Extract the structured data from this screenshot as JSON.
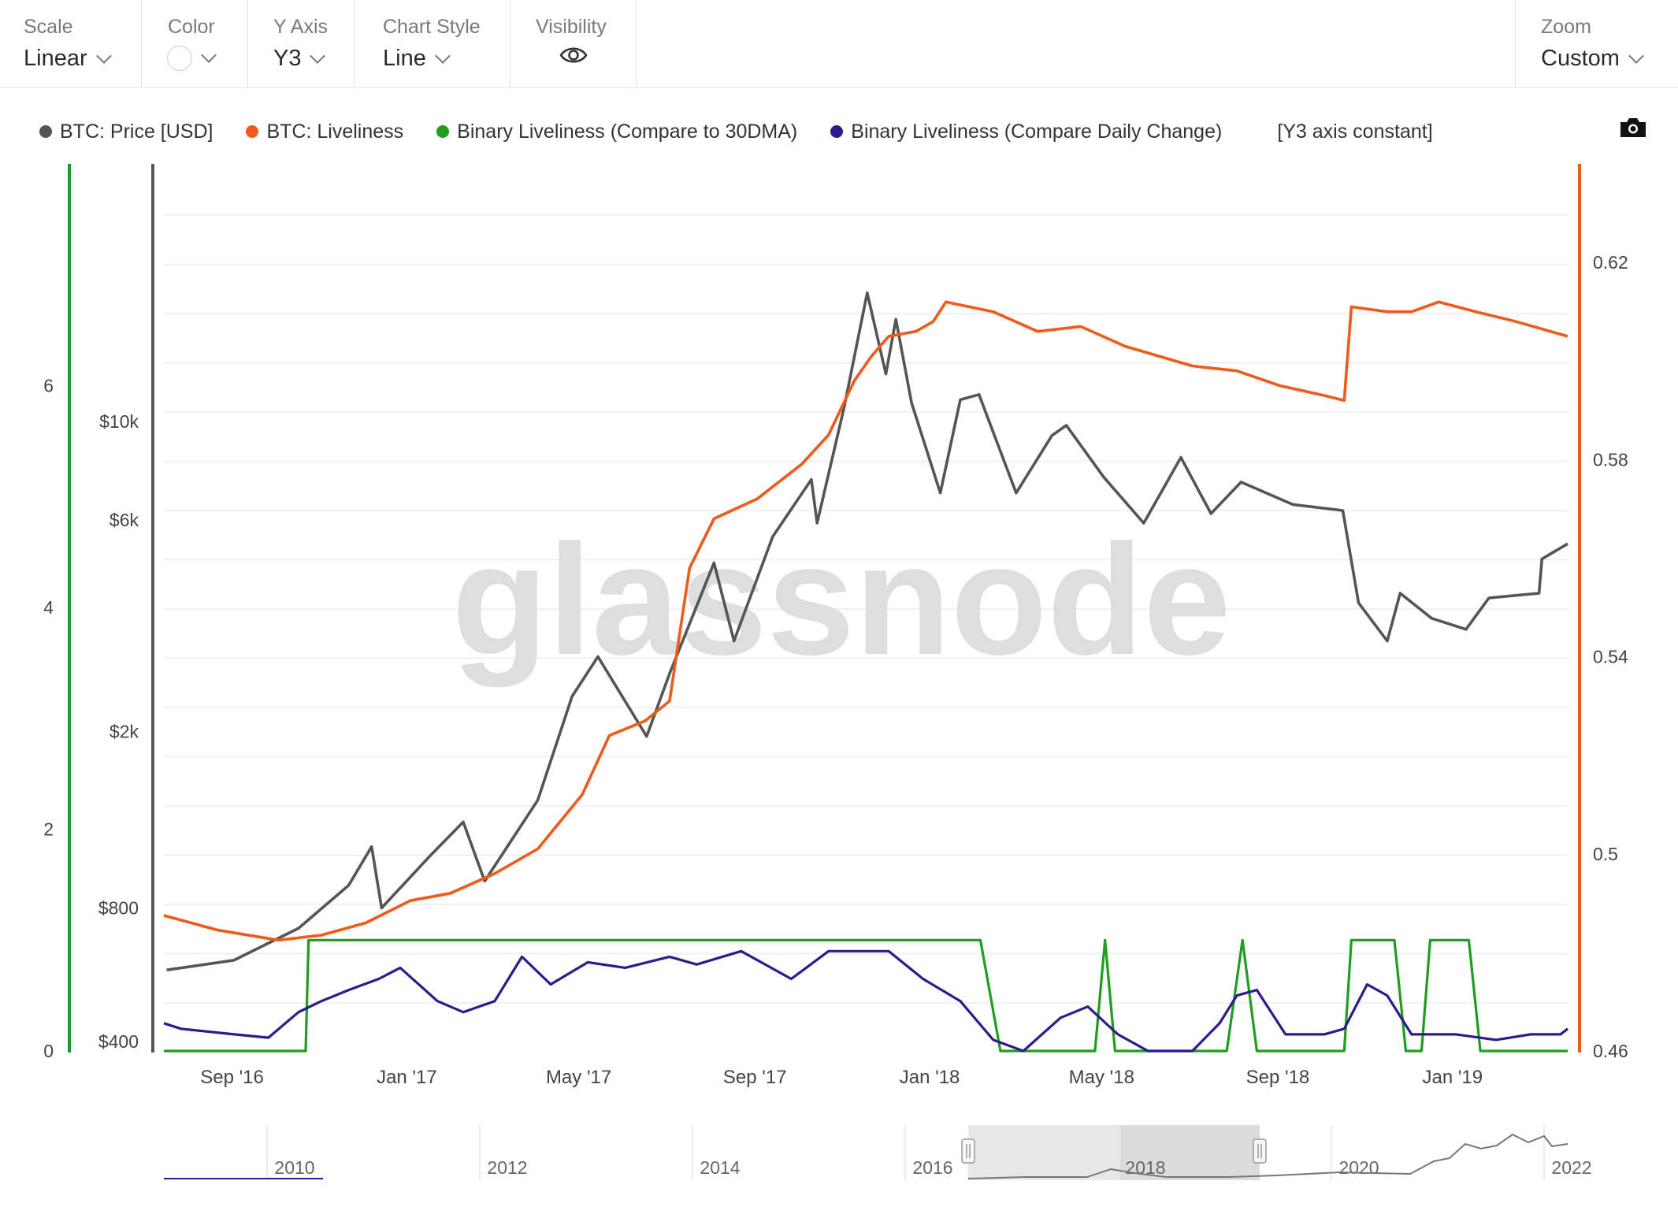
{
  "toolbar": {
    "scale": {
      "label": "Scale",
      "value": "Linear"
    },
    "color": {
      "label": "Color"
    },
    "yaxis": {
      "label": "Y Axis",
      "value": "Y3"
    },
    "chart_style": {
      "label": "Chart Style",
      "value": "Line"
    },
    "visibility": {
      "label": "Visibility"
    },
    "zoom": {
      "label": "Zoom",
      "value": "Custom"
    }
  },
  "legend": [
    {
      "label": "BTC: Price [USD]",
      "color": "#555555"
    },
    {
      "label": "BTC: Liveliness",
      "color": "#f05a1a"
    },
    {
      "label": "Binary Liveliness (Compare to 30DMA)",
      "color": "#1e9e1e"
    },
    {
      "label": "Binary Liveliness (Compare Daily Change)",
      "color": "#2d1a8c"
    },
    {
      "label": "[Y3 axis constant]",
      "color": ""
    }
  ],
  "watermark": "glassnode",
  "chart_data": {
    "type": "line",
    "x_labels": [
      "Sep '16",
      "Jan '17",
      "May '17",
      "Sep '17",
      "Jan '18",
      "May '18",
      "Sep '18",
      "Jan '19"
    ],
    "y_left_green_ticks": [
      "0",
      "2",
      "4",
      "6"
    ],
    "y_left_price_ticks": [
      "$400",
      "$800",
      "$2k",
      "$6k",
      "$10k"
    ],
    "y_right_ticks": [
      "0.46",
      "0.5",
      "0.54",
      "0.58",
      "0.62"
    ],
    "y_left_green_range": [
      0,
      8
    ],
    "y_right_range": [
      0.46,
      0.64
    ],
    "y_price_scale": "log",
    "x_range": [
      "2016-08-13",
      "2019-04-20"
    ],
    "series": [
      {
        "name": "BTC: Price [USD]",
        "axis": "price",
        "color": "#555555",
        "points": [
          [
            "2016-08-15",
            580
          ],
          [
            "2016-10-01",
            610
          ],
          [
            "2016-11-15",
            720
          ],
          [
            "2016-12-20",
            900
          ],
          [
            "2017-01-05",
            1100
          ],
          [
            "2017-01-12",
            800
          ],
          [
            "2017-02-15",
            1050
          ],
          [
            "2017-03-10",
            1250
          ],
          [
            "2017-03-25",
            920
          ],
          [
            "2017-05-01",
            1400
          ],
          [
            "2017-05-25",
            2400
          ],
          [
            "2017-06-12",
            2950
          ],
          [
            "2017-07-16",
            1950
          ],
          [
            "2017-08-01",
            2700
          ],
          [
            "2017-09-01",
            4800
          ],
          [
            "2017-09-15",
            3200
          ],
          [
            "2017-10-12",
            5500
          ],
          [
            "2017-11-08",
            7400
          ],
          [
            "2017-11-12",
            5900
          ],
          [
            "2017-12-01",
            10800
          ],
          [
            "2017-12-17",
            19500
          ],
          [
            "2017-12-30",
            12800
          ],
          [
            "2018-01-06",
            17000
          ],
          [
            "2018-01-17",
            11000
          ],
          [
            "2018-02-06",
            6900
          ],
          [
            "2018-02-20",
            11200
          ],
          [
            "2018-03-05",
            11500
          ],
          [
            "2018-03-31",
            6900
          ],
          [
            "2018-04-25",
            9300
          ],
          [
            "2018-05-05",
            9800
          ],
          [
            "2018-05-31",
            7500
          ],
          [
            "2018-06-28",
            5900
          ],
          [
            "2018-07-24",
            8300
          ],
          [
            "2018-08-14",
            6200
          ],
          [
            "2018-09-04",
            7300
          ],
          [
            "2018-10-10",
            6500
          ],
          [
            "2018-11-14",
            6300
          ],
          [
            "2018-11-25",
            3900
          ],
          [
            "2018-12-15",
            3200
          ],
          [
            "2018-12-24",
            4100
          ],
          [
            "2019-01-15",
            3600
          ],
          [
            "2019-02-08",
            3400
          ],
          [
            "2019-02-24",
            4000
          ],
          [
            "2019-03-31",
            4100
          ],
          [
            "2019-04-02",
            4900
          ],
          [
            "2019-04-20",
            5300
          ]
        ]
      },
      {
        "name": "BTC: Liveliness",
        "axis": "right",
        "color": "#f05a1a",
        "points": [
          [
            "2016-08-13",
            0.4875
          ],
          [
            "2016-09-20",
            0.4845
          ],
          [
            "2016-11-01",
            0.4825
          ],
          [
            "2016-12-01",
            0.4835
          ],
          [
            "2017-01-01",
            0.486
          ],
          [
            "2017-02-01",
            0.4905
          ],
          [
            "2017-03-01",
            0.492
          ],
          [
            "2017-04-01",
            0.496
          ],
          [
            "2017-05-01",
            0.501
          ],
          [
            "2017-06-01",
            0.512
          ],
          [
            "2017-06-20",
            0.524
          ],
          [
            "2017-07-15",
            0.527
          ],
          [
            "2017-08-01",
            0.531
          ],
          [
            "2017-08-15",
            0.558
          ],
          [
            "2017-09-01",
            0.568
          ],
          [
            "2017-10-01",
            0.572
          ],
          [
            "2017-11-01",
            0.579
          ],
          [
            "2017-11-20",
            0.585
          ],
          [
            "2017-12-08",
            0.596
          ],
          [
            "2017-12-20",
            0.601
          ],
          [
            "2018-01-01",
            0.605
          ],
          [
            "2018-01-20",
            0.606
          ],
          [
            "2018-02-01",
            0.608
          ],
          [
            "2018-02-10",
            0.612
          ],
          [
            "2018-03-15",
            0.61
          ],
          [
            "2018-04-15",
            0.606
          ],
          [
            "2018-05-15",
            0.607
          ],
          [
            "2018-06-15",
            0.603
          ],
          [
            "2018-08-01",
            0.599
          ],
          [
            "2018-09-01",
            0.598
          ],
          [
            "2018-10-01",
            0.595
          ],
          [
            "2018-11-01",
            0.593
          ],
          [
            "2018-11-15",
            0.592
          ],
          [
            "2018-11-20",
            0.611
          ],
          [
            "2018-12-15",
            0.61
          ],
          [
            "2019-01-01",
            0.61
          ],
          [
            "2019-01-20",
            0.612
          ],
          [
            "2019-02-15",
            0.61
          ],
          [
            "2019-03-15",
            0.608
          ],
          [
            "2019-04-20",
            0.605
          ]
        ]
      },
      {
        "name": "Binary Liveliness (Compare to 30DMA)",
        "axis": "green",
        "color": "#1e9e1e",
        "points": [
          [
            "2016-08-13",
            0
          ],
          [
            "2016-11-20",
            0
          ],
          [
            "2016-11-22",
            1
          ],
          [
            "2016-12-01",
            1
          ],
          [
            "2016-12-10",
            1
          ],
          [
            "2016-12-14",
            1
          ],
          [
            "2016-12-16",
            1
          ],
          [
            "2016-12-20",
            1
          ],
          [
            "2017-03-01",
            1
          ],
          [
            "2017-08-01",
            1
          ],
          [
            "2018-01-01",
            1
          ],
          [
            "2018-03-06",
            1
          ],
          [
            "2018-03-20",
            0
          ],
          [
            "2018-05-25",
            0
          ],
          [
            "2018-06-01",
            1
          ],
          [
            "2018-06-08",
            0
          ],
          [
            "2018-08-25",
            0
          ],
          [
            "2018-09-05",
            1
          ],
          [
            "2018-09-15",
            0
          ],
          [
            "2018-11-15",
            0
          ],
          [
            "2018-11-20",
            1
          ],
          [
            "2018-12-20",
            1
          ],
          [
            "2018-12-28",
            0
          ],
          [
            "2019-01-08",
            0
          ],
          [
            "2019-01-14",
            1
          ],
          [
            "2019-02-10",
            1
          ],
          [
            "2019-02-18",
            0
          ],
          [
            "2019-04-20",
            0
          ]
        ]
      },
      {
        "name": "Binary Liveliness (Compare Daily Change)",
        "axis": "green",
        "color": "#2d1a8c",
        "points": [
          [
            "2016-08-13",
            0.25
          ],
          [
            "2016-08-25",
            0.2
          ],
          [
            "2016-10-01",
            0.15
          ],
          [
            "2016-10-25",
            0.12
          ],
          [
            "2016-11-15",
            0.35
          ],
          [
            "2016-12-01",
            0.45
          ],
          [
            "2016-12-20",
            0.55
          ],
          [
            "2017-01-10",
            0.65
          ],
          [
            "2017-01-25",
            0.75
          ],
          [
            "2017-02-20",
            0.45
          ],
          [
            "2017-03-10",
            0.35
          ],
          [
            "2017-04-01",
            0.45
          ],
          [
            "2017-04-20",
            0.85
          ],
          [
            "2017-05-10",
            0.6
          ],
          [
            "2017-06-05",
            0.8
          ],
          [
            "2017-07-01",
            0.75
          ],
          [
            "2017-08-01",
            0.85
          ],
          [
            "2017-08-20",
            0.78
          ],
          [
            "2017-09-20",
            0.9
          ],
          [
            "2017-10-25",
            0.65
          ],
          [
            "2017-11-20",
            0.9
          ],
          [
            "2018-01-01",
            0.9
          ],
          [
            "2018-01-25",
            0.65
          ],
          [
            "2018-02-20",
            0.45
          ],
          [
            "2018-03-15",
            0.1
          ],
          [
            "2018-04-05",
            0.0
          ],
          [
            "2018-05-01",
            0.3
          ],
          [
            "2018-05-20",
            0.4
          ],
          [
            "2018-06-10",
            0.15
          ],
          [
            "2018-07-01",
            0.0
          ],
          [
            "2018-08-01",
            0.0
          ],
          [
            "2018-08-20",
            0.25
          ],
          [
            "2018-09-01",
            0.5
          ],
          [
            "2018-09-15",
            0.55
          ],
          [
            "2018-10-05",
            0.15
          ],
          [
            "2018-11-01",
            0.15
          ],
          [
            "2018-11-15",
            0.2
          ],
          [
            "2018-12-01",
            0.6
          ],
          [
            "2018-12-15",
            0.5
          ],
          [
            "2019-01-01",
            0.15
          ],
          [
            "2019-02-01",
            0.15
          ],
          [
            "2019-03-01",
            0.1
          ],
          [
            "2019-03-25",
            0.15
          ],
          [
            "2019-04-15",
            0.15
          ],
          [
            "2019-04-20",
            0.2
          ]
        ]
      }
    ],
    "navigator": {
      "year_labels": [
        "2010",
        "2012",
        "2014",
        "2016",
        "2018",
        "2020",
        "2022"
      ]
    }
  }
}
